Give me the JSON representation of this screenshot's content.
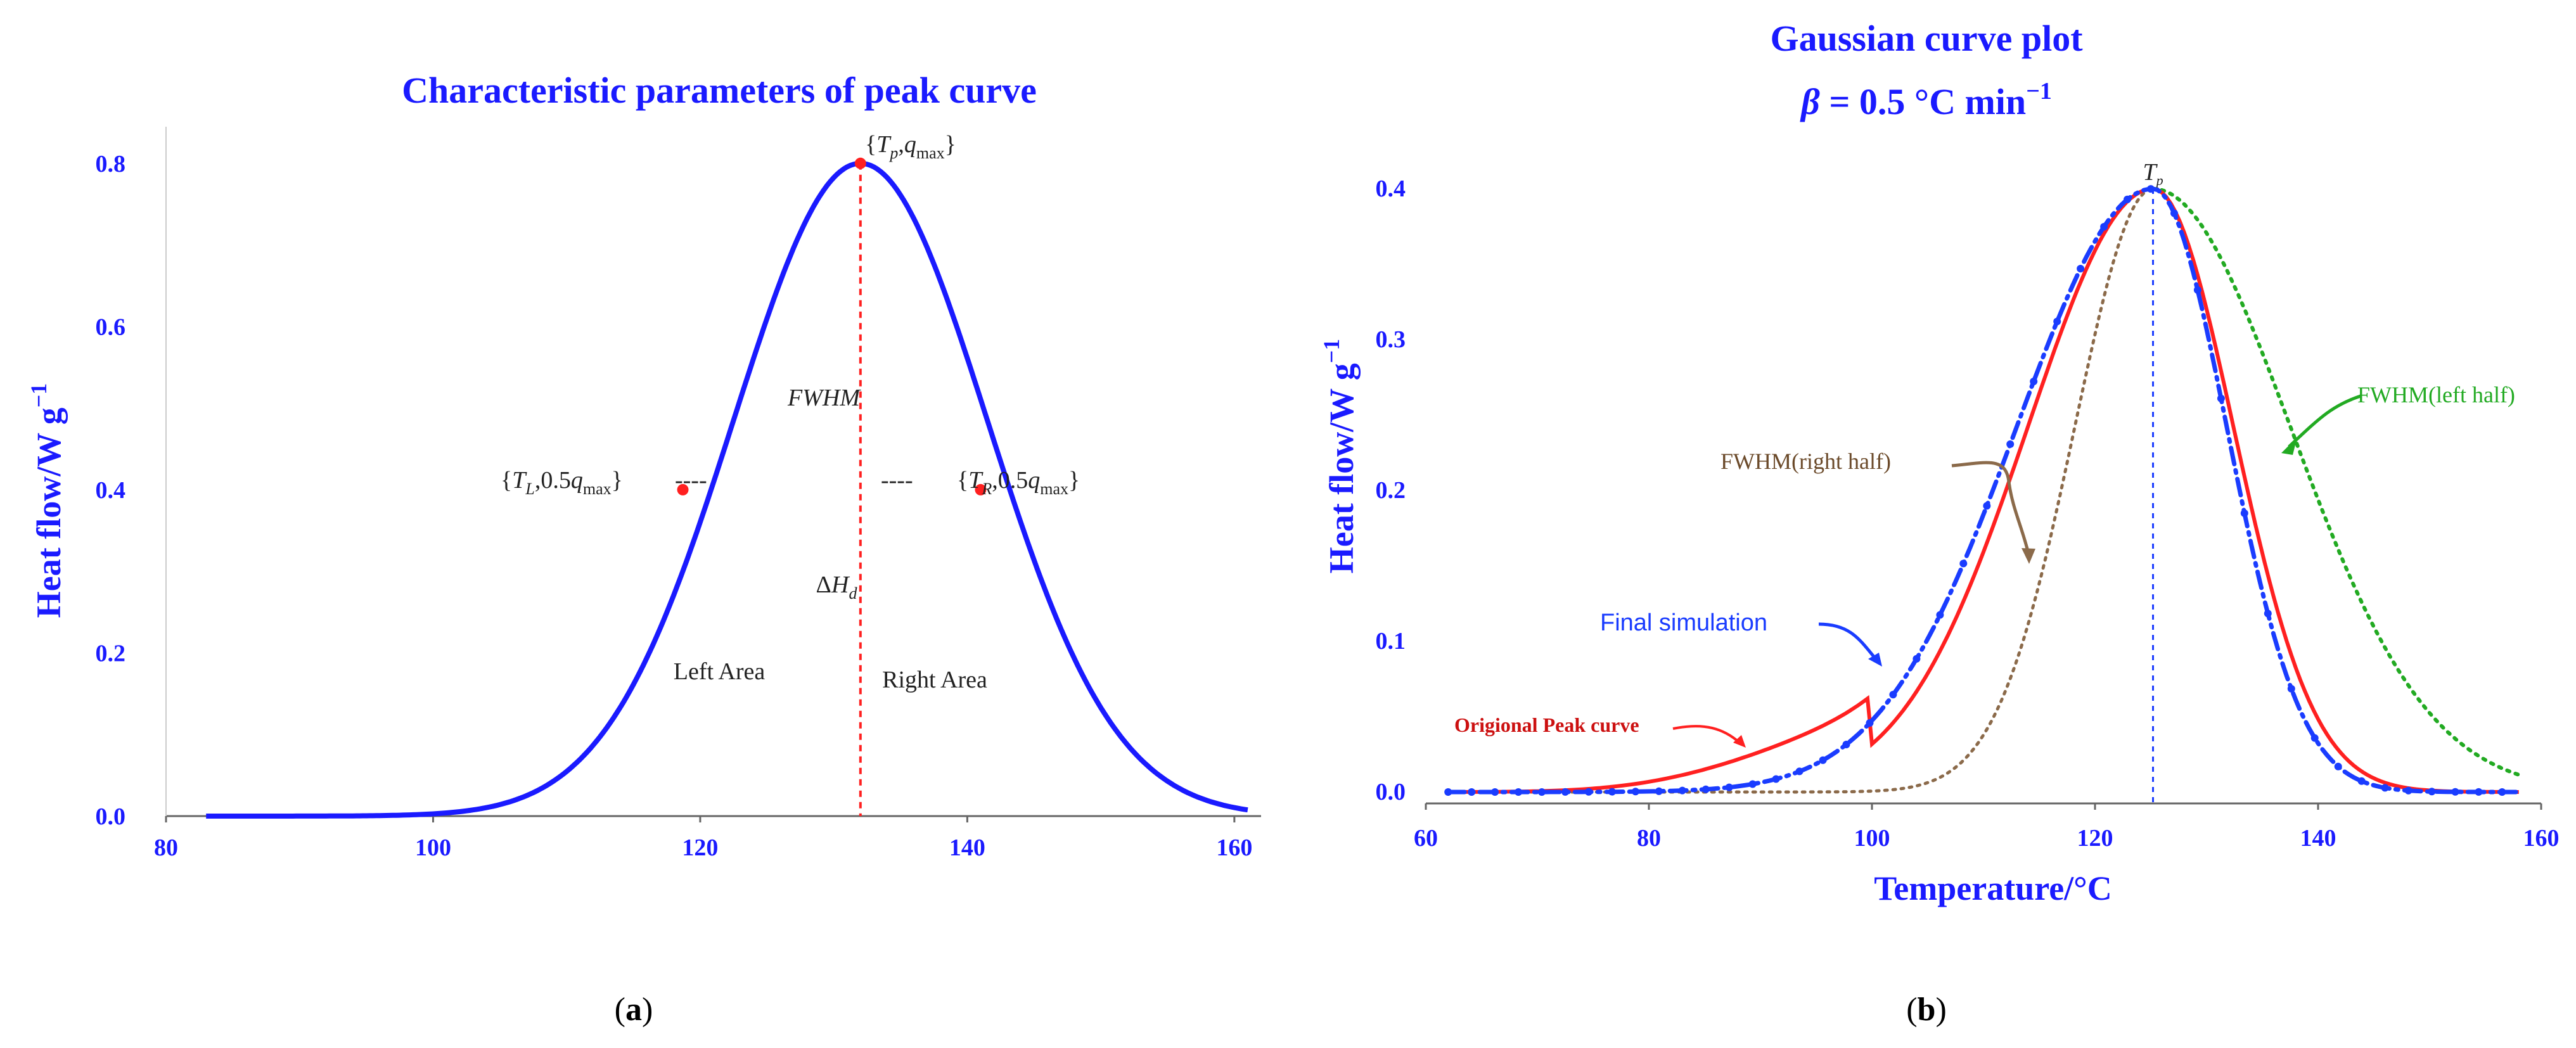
{
  "chart_data": [
    {
      "id": "a",
      "type": "line",
      "panel_label": "(a)",
      "panel_letter": "a",
      "title": "Characteristic parameters of peak curve",
      "ylabel_main": "Heat flow/W g",
      "ylabel_sup": "−1",
      "xlabel": "",
      "xlim": [
        80,
        162
      ],
      "ylim": [
        0,
        0.82
      ],
      "xticks": [
        "80",
        "100",
        "120",
        "140",
        "160"
      ],
      "yticks": [
        "0.0",
        "0.2",
        "0.4",
        "0.6",
        "0.8"
      ],
      "series": [
        {
          "name": "Peak curve",
          "color": "#1a1aff",
          "style": "solid",
          "peak_x": 132,
          "peak_y": 0.8,
          "sigma": 9.5,
          "x_range": [
            83,
            161
          ]
        }
      ],
      "points": [
        {
          "name": "peak",
          "x": 132,
          "y": 0.8
        },
        {
          "name": "left-half",
          "x": 118.7,
          "y": 0.4
        },
        {
          "name": "right-half",
          "x": 141,
          "y": 0.4
        }
      ],
      "annotations": {
        "peak": {
          "sym": "T",
          "sub": "p",
          "sep": ",",
          "val": "q",
          "valsub": "max",
          "open": "{",
          "close": "}"
        },
        "left": {
          "sym": "T",
          "sub": "L",
          "coef": ",0.5",
          "val": "q",
          "valsub": "max",
          "open": "{",
          "close": "}"
        },
        "right": {
          "sym": "T",
          "sub": "R",
          "coef": ",0.5",
          "val": "q",
          "valsub": "max",
          "open": "{",
          "close": "}"
        },
        "fwhm": "FWHM",
        "dh_delta": "Δ",
        "dh_H": "H",
        "dh_sub": "d",
        "left_area": "Left Area",
        "right_area": "Right Area",
        "dashes": "----"
      }
    },
    {
      "id": "b",
      "type": "line",
      "panel_label": "(b)",
      "panel_letter": "b",
      "title": "Gaussian curve plot",
      "subtitle_beta": "β",
      "subtitle_rest": " = 0.5 °C min",
      "subtitle_sup": "−1",
      "ylabel_main": "Heat flow/W g",
      "ylabel_sup": "−1",
      "xlabel": "Temperature/°C",
      "xlim": [
        60,
        160
      ],
      "ylim": [
        0,
        0.42
      ],
      "xticks": [
        "60",
        "80",
        "100",
        "120",
        "140",
        "160"
      ],
      "yticks": [
        "0.0",
        "0.1",
        "0.2",
        "0.3",
        "0.4"
      ],
      "peak_label": {
        "sym": "T",
        "sub": "p"
      },
      "series": [
        {
          "name": "Origional Peak curve",
          "color": "#ff2020",
          "style": "solid"
        },
        {
          "name": "Final simulation",
          "color": "#1a3cff",
          "style": "dash-dot"
        },
        {
          "name": "FWHM(right half)",
          "color": "#8b6a4a",
          "style": "dotted"
        },
        {
          "name": "FWHM(left half)",
          "color": "#22aa22",
          "style": "dotted"
        }
      ],
      "labels": {
        "original": "Origional Peak curve",
        "final": "Final simulation",
        "right_half": "FWHM(right half)",
        "left_half": "FWHM(left half)"
      }
    }
  ]
}
